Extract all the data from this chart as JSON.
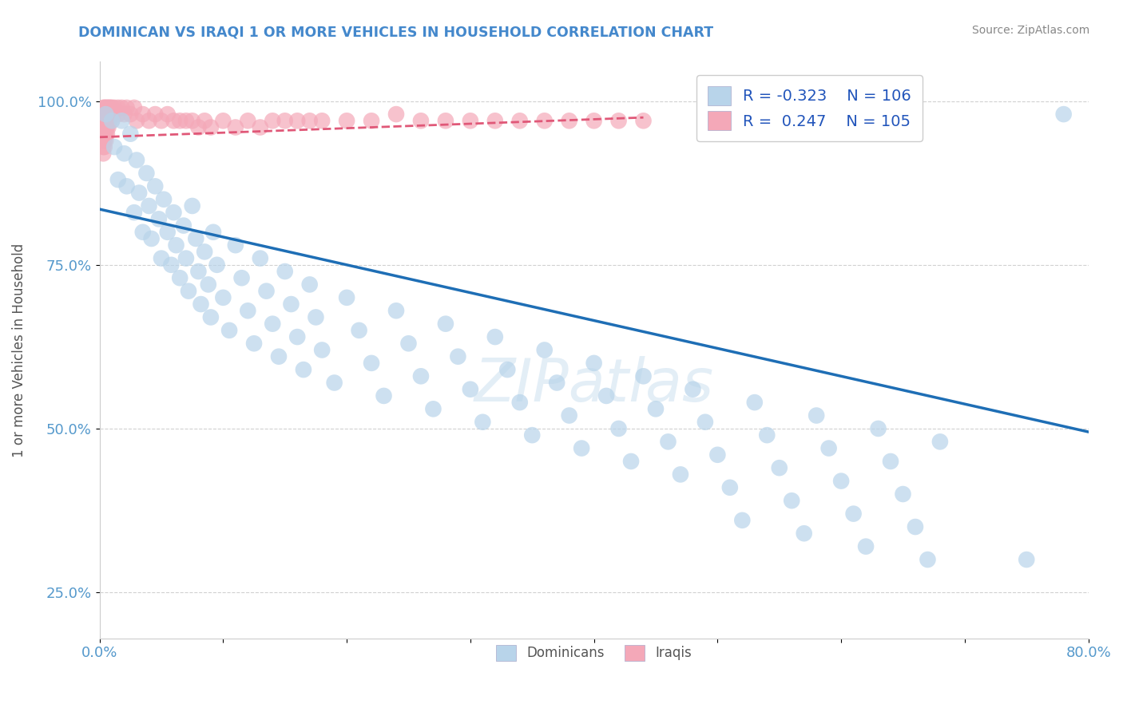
{
  "title": "DOMINICAN VS IRAQI 1 OR MORE VEHICLES IN HOUSEHOLD CORRELATION CHART",
  "source": "Source: ZipAtlas.com",
  "ylabel_label": "1 or more Vehicles in Household",
  "xlim": [
    0.0,
    0.8
  ],
  "ylim": [
    0.18,
    1.06
  ],
  "legend_R": [
    -0.323,
    0.247
  ],
  "legend_N": [
    106,
    105
  ],
  "blue_color": "#b8d4ea",
  "pink_color": "#f4a8b8",
  "blue_line_color": "#1e6eb5",
  "pink_line_color": "#e05878",
  "watermark": "ZIPatlas",
  "blue_line": [
    [
      0.0,
      0.835
    ],
    [
      0.8,
      0.495
    ]
  ],
  "pink_line": [
    [
      0.0,
      0.945
    ],
    [
      0.44,
      0.975
    ]
  ],
  "blue_scatter": [
    [
      0.005,
      0.98
    ],
    [
      0.01,
      0.97
    ],
    [
      0.012,
      0.93
    ],
    [
      0.015,
      0.88
    ],
    [
      0.018,
      0.97
    ],
    [
      0.02,
      0.92
    ],
    [
      0.022,
      0.87
    ],
    [
      0.025,
      0.95
    ],
    [
      0.028,
      0.83
    ],
    [
      0.03,
      0.91
    ],
    [
      0.032,
      0.86
    ],
    [
      0.035,
      0.8
    ],
    [
      0.038,
      0.89
    ],
    [
      0.04,
      0.84
    ],
    [
      0.042,
      0.79
    ],
    [
      0.045,
      0.87
    ],
    [
      0.048,
      0.82
    ],
    [
      0.05,
      0.76
    ],
    [
      0.052,
      0.85
    ],
    [
      0.055,
      0.8
    ],
    [
      0.058,
      0.75
    ],
    [
      0.06,
      0.83
    ],
    [
      0.062,
      0.78
    ],
    [
      0.065,
      0.73
    ],
    [
      0.068,
      0.81
    ],
    [
      0.07,
      0.76
    ],
    [
      0.072,
      0.71
    ],
    [
      0.075,
      0.84
    ],
    [
      0.078,
      0.79
    ],
    [
      0.08,
      0.74
    ],
    [
      0.082,
      0.69
    ],
    [
      0.085,
      0.77
    ],
    [
      0.088,
      0.72
    ],
    [
      0.09,
      0.67
    ],
    [
      0.092,
      0.8
    ],
    [
      0.095,
      0.75
    ],
    [
      0.1,
      0.7
    ],
    [
      0.105,
      0.65
    ],
    [
      0.11,
      0.78
    ],
    [
      0.115,
      0.73
    ],
    [
      0.12,
      0.68
    ],
    [
      0.125,
      0.63
    ],
    [
      0.13,
      0.76
    ],
    [
      0.135,
      0.71
    ],
    [
      0.14,
      0.66
    ],
    [
      0.145,
      0.61
    ],
    [
      0.15,
      0.74
    ],
    [
      0.155,
      0.69
    ],
    [
      0.16,
      0.64
    ],
    [
      0.165,
      0.59
    ],
    [
      0.17,
      0.72
    ],
    [
      0.175,
      0.67
    ],
    [
      0.18,
      0.62
    ],
    [
      0.19,
      0.57
    ],
    [
      0.2,
      0.7
    ],
    [
      0.21,
      0.65
    ],
    [
      0.22,
      0.6
    ],
    [
      0.23,
      0.55
    ],
    [
      0.24,
      0.68
    ],
    [
      0.25,
      0.63
    ],
    [
      0.26,
      0.58
    ],
    [
      0.27,
      0.53
    ],
    [
      0.28,
      0.66
    ],
    [
      0.29,
      0.61
    ],
    [
      0.3,
      0.56
    ],
    [
      0.31,
      0.51
    ],
    [
      0.32,
      0.64
    ],
    [
      0.33,
      0.59
    ],
    [
      0.34,
      0.54
    ],
    [
      0.35,
      0.49
    ],
    [
      0.36,
      0.62
    ],
    [
      0.37,
      0.57
    ],
    [
      0.38,
      0.52
    ],
    [
      0.39,
      0.47
    ],
    [
      0.4,
      0.6
    ],
    [
      0.41,
      0.55
    ],
    [
      0.42,
      0.5
    ],
    [
      0.43,
      0.45
    ],
    [
      0.44,
      0.58
    ],
    [
      0.45,
      0.53
    ],
    [
      0.46,
      0.48
    ],
    [
      0.47,
      0.43
    ],
    [
      0.48,
      0.56
    ],
    [
      0.49,
      0.51
    ],
    [
      0.5,
      0.46
    ],
    [
      0.51,
      0.41
    ],
    [
      0.52,
      0.36
    ],
    [
      0.53,
      0.54
    ],
    [
      0.54,
      0.49
    ],
    [
      0.55,
      0.44
    ],
    [
      0.56,
      0.39
    ],
    [
      0.57,
      0.34
    ],
    [
      0.58,
      0.52
    ],
    [
      0.59,
      0.47
    ],
    [
      0.6,
      0.42
    ],
    [
      0.61,
      0.37
    ],
    [
      0.62,
      0.32
    ],
    [
      0.63,
      0.5
    ],
    [
      0.64,
      0.45
    ],
    [
      0.65,
      0.4
    ],
    [
      0.66,
      0.35
    ],
    [
      0.67,
      0.3
    ],
    [
      0.68,
      0.48
    ],
    [
      0.75,
      0.3
    ],
    [
      0.78,
      0.98
    ]
  ],
  "pink_scatter": [
    [
      0.003,
      0.99
    ],
    [
      0.003,
      0.98
    ],
    [
      0.003,
      0.97
    ],
    [
      0.003,
      0.96
    ],
    [
      0.003,
      0.95
    ],
    [
      0.003,
      0.94
    ],
    [
      0.003,
      0.93
    ],
    [
      0.003,
      0.92
    ],
    [
      0.004,
      0.99
    ],
    [
      0.004,
      0.98
    ],
    [
      0.004,
      0.97
    ],
    [
      0.004,
      0.96
    ],
    [
      0.004,
      0.95
    ],
    [
      0.004,
      0.94
    ],
    [
      0.004,
      0.93
    ],
    [
      0.005,
      0.99
    ],
    [
      0.005,
      0.98
    ],
    [
      0.005,
      0.97
    ],
    [
      0.005,
      0.96
    ],
    [
      0.005,
      0.95
    ],
    [
      0.005,
      0.94
    ],
    [
      0.006,
      0.99
    ],
    [
      0.006,
      0.98
    ],
    [
      0.006,
      0.97
    ],
    [
      0.006,
      0.96
    ],
    [
      0.006,
      0.95
    ],
    [
      0.007,
      0.99
    ],
    [
      0.007,
      0.98
    ],
    [
      0.007,
      0.97
    ],
    [
      0.007,
      0.96
    ],
    [
      0.008,
      0.99
    ],
    [
      0.008,
      0.98
    ],
    [
      0.008,
      0.97
    ],
    [
      0.009,
      0.99
    ],
    [
      0.009,
      0.98
    ],
    [
      0.01,
      0.99
    ],
    [
      0.01,
      0.98
    ],
    [
      0.01,
      0.97
    ],
    [
      0.012,
      0.99
    ],
    [
      0.012,
      0.98
    ],
    [
      0.015,
      0.99
    ],
    [
      0.015,
      0.98
    ],
    [
      0.018,
      0.99
    ],
    [
      0.02,
      0.98
    ],
    [
      0.022,
      0.99
    ],
    [
      0.025,
      0.98
    ],
    [
      0.028,
      0.99
    ],
    [
      0.03,
      0.97
    ],
    [
      0.035,
      0.98
    ],
    [
      0.04,
      0.97
    ],
    [
      0.045,
      0.98
    ],
    [
      0.05,
      0.97
    ],
    [
      0.055,
      0.98
    ],
    [
      0.06,
      0.97
    ],
    [
      0.065,
      0.97
    ],
    [
      0.07,
      0.97
    ],
    [
      0.075,
      0.97
    ],
    [
      0.08,
      0.96
    ],
    [
      0.085,
      0.97
    ],
    [
      0.09,
      0.96
    ],
    [
      0.1,
      0.97
    ],
    [
      0.11,
      0.96
    ],
    [
      0.12,
      0.97
    ],
    [
      0.13,
      0.96
    ],
    [
      0.14,
      0.97
    ],
    [
      0.15,
      0.97
    ],
    [
      0.16,
      0.97
    ],
    [
      0.17,
      0.97
    ],
    [
      0.18,
      0.97
    ],
    [
      0.2,
      0.97
    ],
    [
      0.22,
      0.97
    ],
    [
      0.24,
      0.98
    ],
    [
      0.26,
      0.97
    ],
    [
      0.28,
      0.97
    ],
    [
      0.3,
      0.97
    ],
    [
      0.32,
      0.97
    ],
    [
      0.34,
      0.97
    ],
    [
      0.36,
      0.97
    ],
    [
      0.38,
      0.97
    ],
    [
      0.4,
      0.97
    ],
    [
      0.42,
      0.97
    ],
    [
      0.44,
      0.97
    ]
  ]
}
